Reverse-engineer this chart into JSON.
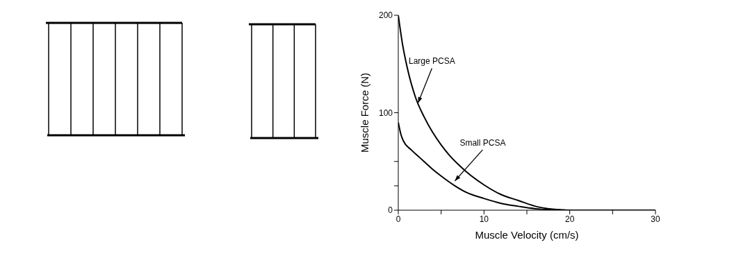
{
  "chart_data": {
    "type": "line",
    "xlabel": "Muscle Velocity (cm/s)",
    "ylabel": "Muscle Force (N)",
    "xlim": [
      0,
      30
    ],
    "xticks": [
      0,
      {
        "value": 5,
        "label": null
      },
      10,
      {
        "value": 15,
        "label": null
      },
      20,
      {
        "value": 25,
        "label": null
      },
      30
    ],
    "ylim": [
      0,
      200
    ],
    "yticks": [
      0,
      {
        "value": 25,
        "label": null
      },
      {
        "value": 50,
        "label": null
      },
      100,
      200
    ],
    "grid": false,
    "legend": false,
    "marker": "none",
    "line_style": "solid",
    "series": [
      {
        "color": "#000000",
        "x": [
          0,
          0.5,
          1,
          2,
          3,
          4,
          5,
          6,
          7,
          8,
          10,
          12,
          14,
          16,
          18,
          20,
          25,
          30
        ],
        "values": [
          200,
          170,
          148,
          116,
          96,
          80,
          67,
          56,
          47,
          39,
          26,
          16,
          10,
          4,
          1,
          0,
          0,
          0
        ]
      },
      {
        "color": "#000000",
        "x": [
          0,
          0.3,
          0.6,
          1.5,
          2.5,
          4,
          5,
          6.6,
          8,
          10,
          12,
          14,
          16,
          18,
          20,
          25,
          30
        ],
        "values": [
          90,
          78,
          71,
          62,
          54,
          42,
          35,
          25,
          18,
          12,
          7,
          4,
          1.5,
          0.5,
          0,
          0,
          0
        ]
      }
    ],
    "annotations": [
      {
        "text": "Large PCSA",
        "x": 2.3,
        "y": 110
      },
      {
        "text": "Small PCSA",
        "x": 6.6,
        "y": 30
      }
    ]
  }
}
